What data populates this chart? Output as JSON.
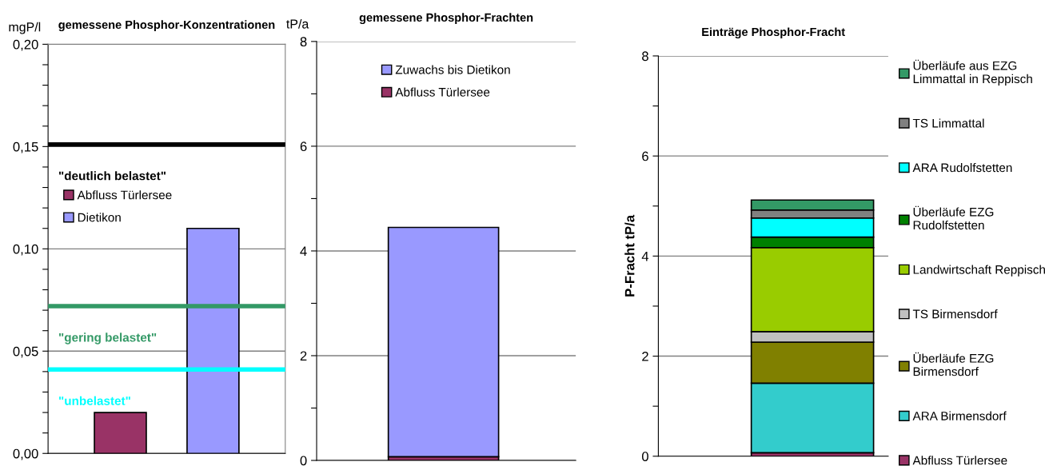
{
  "chart_data": [
    {
      "type": "bar",
      "title": "gemessene Phosphor-Konzentrationen",
      "ylabel": "mgP/l",
      "categories": [
        null,
        null
      ],
      "series": [
        {
          "name": "Abfluss Türlersee",
          "color": "#993366",
          "values": [
            0.02,
            null
          ]
        },
        {
          "name": "Dietikon",
          "color": "#9999ff",
          "values": [
            null,
            0.11
          ]
        }
      ],
      "ylim": [
        0,
        0.2
      ],
      "yticks": [
        {
          "value": 0,
          "label": "0,00"
        },
        {
          "value": 0.01,
          "label": null
        },
        {
          "value": 0.02,
          "label": null
        },
        {
          "value": 0.03,
          "label": null
        },
        {
          "value": 0.04,
          "label": null
        },
        {
          "value": 0.05,
          "label": "0,05"
        },
        {
          "value": 0.06,
          "label": null
        },
        {
          "value": 0.07,
          "label": null
        },
        {
          "value": 0.08,
          "label": null
        },
        {
          "value": 0.09,
          "label": null
        },
        {
          "value": 0.1,
          "label": "0,10"
        },
        {
          "value": 0.11,
          "label": null
        },
        {
          "value": 0.12,
          "label": null
        },
        {
          "value": 0.13,
          "label": null
        },
        {
          "value": 0.14,
          "label": null
        },
        {
          "value": 0.15,
          "label": "0,15"
        },
        {
          "value": 0.16,
          "label": null
        },
        {
          "value": 0.17,
          "label": null
        },
        {
          "value": 0.18,
          "label": null
        },
        {
          "value": 0.19,
          "label": null
        },
        {
          "value": 0.2,
          "label": "0,20"
        }
      ],
      "ref_lines": [
        {
          "axis": "y",
          "value": 0.151,
          "label": "\"deutlich belastet\"",
          "color": "#000000"
        },
        {
          "axis": "y",
          "value": 0.072,
          "label": "\"gering belastet\"",
          "color": "#339966"
        },
        {
          "axis": "y",
          "value": 0.041,
          "label": "\"unbelastet\"",
          "color": "#00ffff"
        }
      ],
      "grid": "y",
      "legend": "top left"
    },
    {
      "type": "bar",
      "title": "gemessene Phosphor-Frachten",
      "ylabel": "tP/a",
      "categories": [
        null
      ],
      "stacked": true,
      "series": [
        {
          "name": "Abfluss Türlersee",
          "color": "#993366",
          "values": [
            0.07
          ]
        },
        {
          "name": "Zuwachs bis Dietikon",
          "color": "#9999ff",
          "values": [
            4.38
          ]
        }
      ],
      "ylim": [
        0,
        8
      ],
      "yticks": [
        0,
        {
          "value": 1,
          "label": null
        },
        2,
        {
          "value": 3,
          "label": null
        },
        4,
        {
          "value": 5,
          "label": null
        },
        6,
        {
          "value": 7,
          "label": null
        },
        8
      ],
      "grid": "y",
      "legend": "top"
    },
    {
      "type": "bar",
      "title": "Einträge Phosphor-Fracht",
      "ylabel": "P-Fracht tP/a",
      "categories": [
        null
      ],
      "stacked": true,
      "series": [
        {
          "name": "Abfluss Türlersee",
          "color": "#993366",
          "values": [
            0.07
          ]
        },
        {
          "name": "ARA Birmensdorf",
          "color": "#33cccc",
          "values": [
            1.39
          ]
        },
        {
          "name": "Überläufe EZG\nBirmensdorf",
          "color": "#808000",
          "values": [
            0.82
          ]
        },
        {
          "name": "TS Birmensdorf",
          "color": "#c0c0c0",
          "values": [
            0.21
          ]
        },
        {
          "name": "Landwirtschaft Reppisch",
          "color": "#99cc00",
          "values": [
            1.68
          ]
        },
        {
          "name": "Überläufe EZG\nRudolfstetten",
          "color": "#008000",
          "values": [
            0.21
          ]
        },
        {
          "name": "ARA Rudolfstetten",
          "color": "#00ffff",
          "values": [
            0.38
          ]
        },
        {
          "name": "TS Limmattal",
          "color": "#808080",
          "values": [
            0.16
          ]
        },
        {
          "name": "Überläufe aus EZG\nLimmattal in Reppisch",
          "color": "#339966",
          "values": [
            0.2
          ]
        }
      ],
      "ylim": [
        0,
        8
      ],
      "yticks": [
        0,
        {
          "value": 1,
          "label": null
        },
        2,
        {
          "value": 3,
          "label": null
        },
        4,
        {
          "value": 5,
          "label": null
        },
        6,
        {
          "value": 7,
          "label": null
        },
        8
      ],
      "grid": "y",
      "legend": "right"
    }
  ]
}
